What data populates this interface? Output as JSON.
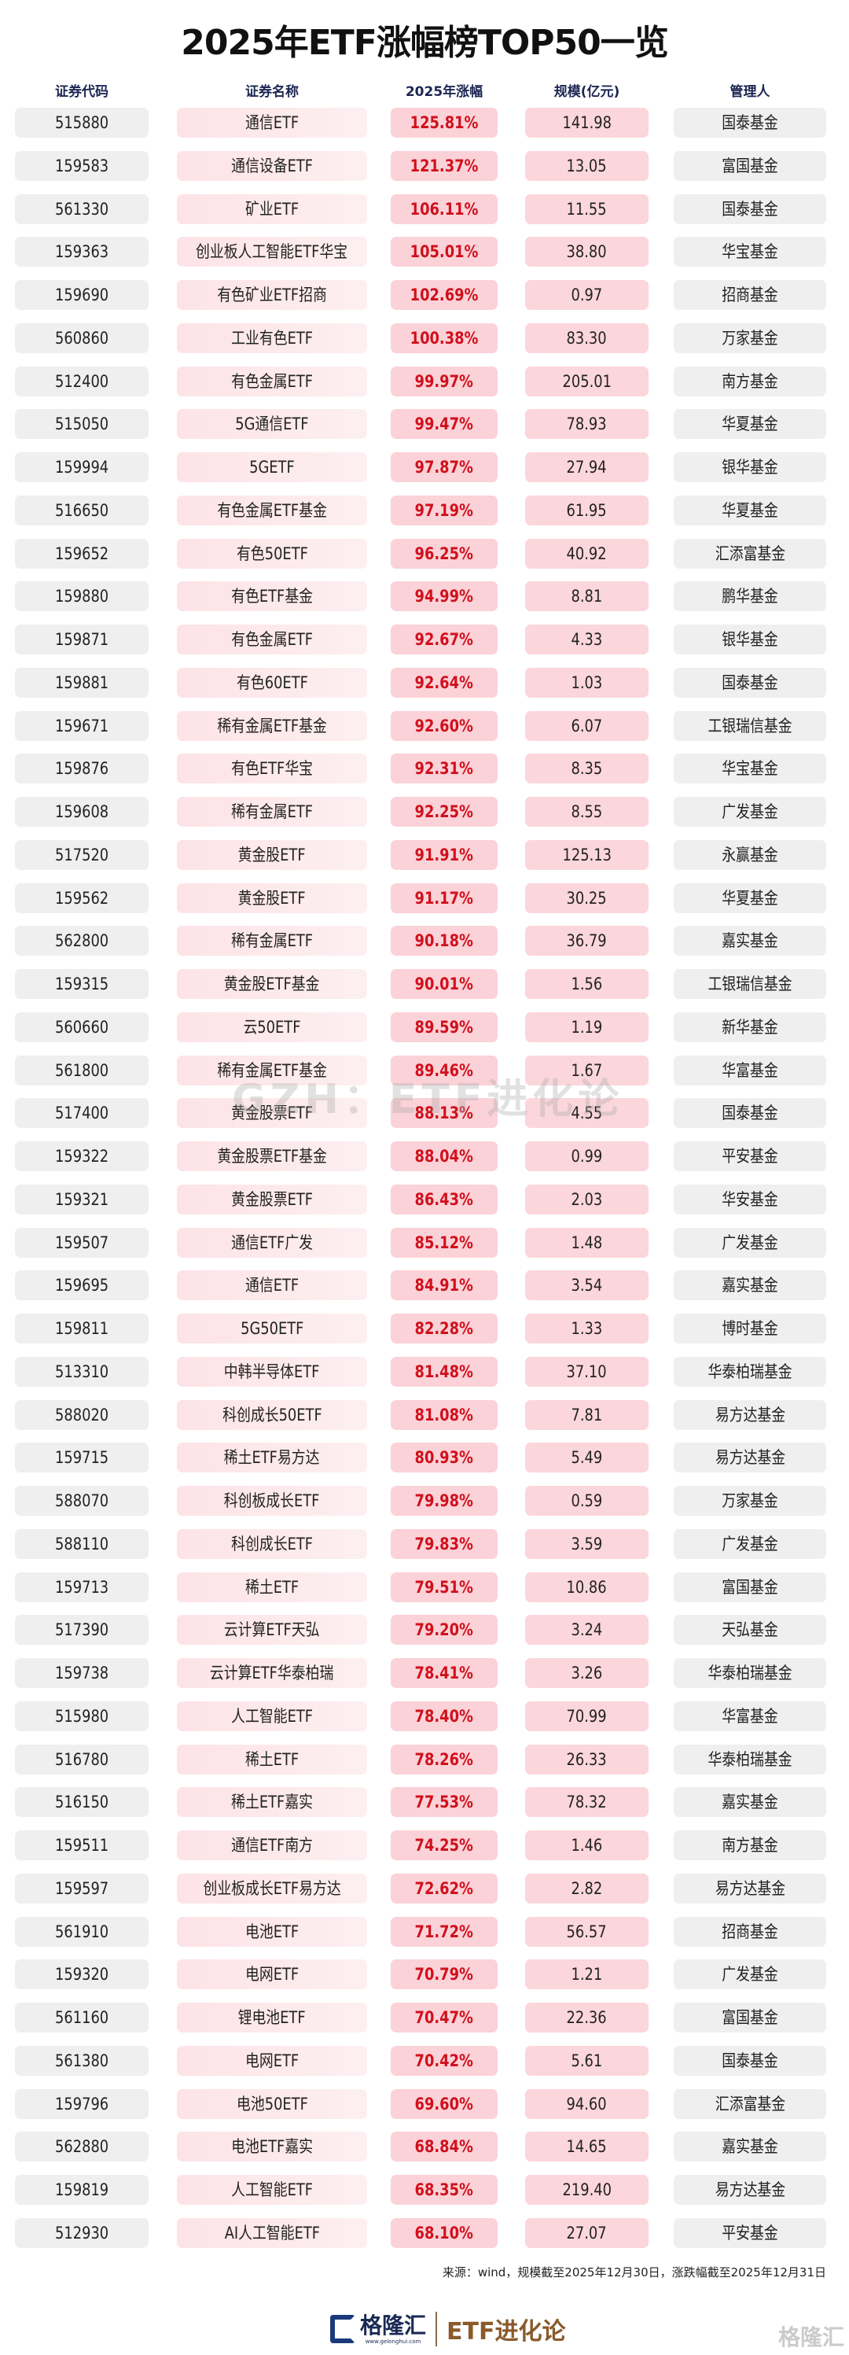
{
  "title": "2025年ETF涨幅榜TOP50一览",
  "headers": [
    "证券代码",
    "证券名称",
    "2025年涨幅",
    "规模(亿元)",
    "管理人"
  ],
  "colors": {
    "pct_text": "#d0101c",
    "pct_bg": "#fbd2d8",
    "gray_cell": "#efefef",
    "header_text": "#1c2752"
  },
  "rows": [
    [
      "515880",
      "通信ETF",
      "125.81%",
      "141.98",
      "国泰基金"
    ],
    [
      "159583",
      "通信设备ETF",
      "121.37%",
      "13.05",
      "富国基金"
    ],
    [
      "561330",
      "矿业ETF",
      "106.11%",
      "11.55",
      "国泰基金"
    ],
    [
      "159363",
      "创业板人工智能ETF华宝",
      "105.01%",
      "38.80",
      "华宝基金"
    ],
    [
      "159690",
      "有色矿业ETF招商",
      "102.69%",
      "0.97",
      "招商基金"
    ],
    [
      "560860",
      "工业有色ETF",
      "100.38%",
      "83.30",
      "万家基金"
    ],
    [
      "512400",
      "有色金属ETF",
      "99.97%",
      "205.01",
      "南方基金"
    ],
    [
      "515050",
      "5G通信ETF",
      "99.47%",
      "78.93",
      "华夏基金"
    ],
    [
      "159994",
      "5GETF",
      "97.87%",
      "27.94",
      "银华基金"
    ],
    [
      "516650",
      "有色金属ETF基金",
      "97.19%",
      "61.95",
      "华夏基金"
    ],
    [
      "159652",
      "有色50ETF",
      "96.25%",
      "40.92",
      "汇添富基金"
    ],
    [
      "159880",
      "有色ETF基金",
      "94.99%",
      "8.81",
      "鹏华基金"
    ],
    [
      "159871",
      "有色金属ETF",
      "92.67%",
      "4.33",
      "银华基金"
    ],
    [
      "159881",
      "有色60ETF",
      "92.64%",
      "1.03",
      "国泰基金"
    ],
    [
      "159671",
      "稀有金属ETF基金",
      "92.60%",
      "6.07",
      "工银瑞信基金"
    ],
    [
      "159876",
      "有色ETF华宝",
      "92.31%",
      "8.35",
      "华宝基金"
    ],
    [
      "159608",
      "稀有金属ETF",
      "92.25%",
      "8.55",
      "广发基金"
    ],
    [
      "517520",
      "黄金股ETF",
      "91.91%",
      "125.13",
      "永赢基金"
    ],
    [
      "159562",
      "黄金股ETF",
      "91.17%",
      "30.25",
      "华夏基金"
    ],
    [
      "562800",
      "稀有金属ETF",
      "90.18%",
      "36.79",
      "嘉实基金"
    ],
    [
      "159315",
      "黄金股ETF基金",
      "90.01%",
      "1.56",
      "工银瑞信基金"
    ],
    [
      "560660",
      "云50ETF",
      "89.59%",
      "1.19",
      "新华基金"
    ],
    [
      "561800",
      "稀有金属ETF基金",
      "89.46%",
      "1.67",
      "华富基金"
    ],
    [
      "517400",
      "黄金股票ETF",
      "88.13%",
      "4.55",
      "国泰基金"
    ],
    [
      "159322",
      "黄金股票ETF基金",
      "88.04%",
      "0.99",
      "平安基金"
    ],
    [
      "159321",
      "黄金股票ETF",
      "86.43%",
      "2.03",
      "华安基金"
    ],
    [
      "159507",
      "通信ETF广发",
      "85.12%",
      "1.48",
      "广发基金"
    ],
    [
      "159695",
      "通信ETF",
      "84.91%",
      "3.54",
      "嘉实基金"
    ],
    [
      "159811",
      "5G50ETF",
      "82.28%",
      "1.33",
      "博时基金"
    ],
    [
      "513310",
      "中韩半导体ETF",
      "81.48%",
      "37.10",
      "华泰柏瑞基金"
    ],
    [
      "588020",
      "科创成长50ETF",
      "81.08%",
      "7.81",
      "易方达基金"
    ],
    [
      "159715",
      "稀土ETF易方达",
      "80.93%",
      "5.49",
      "易方达基金"
    ],
    [
      "588070",
      "科创板成长ETF",
      "79.98%",
      "0.59",
      "万家基金"
    ],
    [
      "588110",
      "科创成长ETF",
      "79.83%",
      "3.59",
      "广发基金"
    ],
    [
      "159713",
      "稀土ETF",
      "79.51%",
      "10.86",
      "富国基金"
    ],
    [
      "517390",
      "云计算ETF天弘",
      "79.20%",
      "3.24",
      "天弘基金"
    ],
    [
      "159738",
      "云计算ETF华泰柏瑞",
      "78.41%",
      "3.26",
      "华泰柏瑞基金"
    ],
    [
      "515980",
      "人工智能ETF",
      "78.40%",
      "70.99",
      "华富基金"
    ],
    [
      "516780",
      "稀土ETF",
      "78.26%",
      "26.33",
      "华泰柏瑞基金"
    ],
    [
      "516150",
      "稀土ETF嘉实",
      "77.53%",
      "78.32",
      "嘉实基金"
    ],
    [
      "159511",
      "通信ETF南方",
      "74.25%",
      "1.46",
      "南方基金"
    ],
    [
      "159597",
      "创业板成长ETF易方达",
      "72.62%",
      "2.82",
      "易方达基金"
    ],
    [
      "561910",
      "电池ETF",
      "71.72%",
      "56.57",
      "招商基金"
    ],
    [
      "159320",
      "电网ETF",
      "70.79%",
      "1.21",
      "广发基金"
    ],
    [
      "561160",
      "锂电池ETF",
      "70.47%",
      "22.36",
      "富国基金"
    ],
    [
      "561380",
      "电网ETF",
      "70.42%",
      "5.61",
      "国泰基金"
    ],
    [
      "159796",
      "电池50ETF",
      "69.60%",
      "94.60",
      "汇添富基金"
    ],
    [
      "562880",
      "电池ETF嘉实",
      "68.84%",
      "14.65",
      "嘉实基金"
    ],
    [
      "159819",
      "人工智能ETF",
      "68.35%",
      "219.40",
      "易方达基金"
    ],
    [
      "512930",
      "AI人工智能ETF",
      "68.10%",
      "27.07",
      "平安基金"
    ]
  ],
  "watermark": "GZH：ETF进化论",
  "source": "来源：wind，规模截至2025年12月30日，涨跌幅截至2025年12月31日",
  "footer": {
    "brand": "格隆汇",
    "brand_url": "www.gelonghui.com",
    "column": "ETF进化论",
    "corner_mark": "格隆汇"
  }
}
